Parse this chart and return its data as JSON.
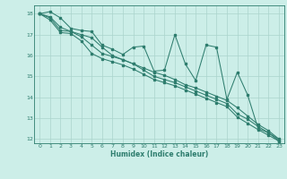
{
  "title": "",
  "xlabel": "Humidex (Indice chaleur)",
  "bg_color": "#cceee8",
  "line_color": "#2e7d6e",
  "grid_color": "#aad4cc",
  "xmin": -0.5,
  "xmax": 23.5,
  "ymin": 11.8,
  "ymax": 18.4,
  "yticks": [
    12,
    13,
    14,
    15,
    16,
    17,
    18
  ],
  "xticks": [
    0,
    1,
    2,
    3,
    4,
    5,
    6,
    7,
    8,
    9,
    10,
    11,
    12,
    13,
    14,
    15,
    16,
    17,
    18,
    19,
    20,
    21,
    22,
    23
  ],
  "series": [
    [
      18.0,
      18.1,
      17.8,
      17.3,
      17.2,
      17.15,
      16.5,
      16.3,
      16.05,
      16.4,
      16.45,
      15.25,
      15.3,
      17.0,
      15.6,
      14.8,
      16.5,
      16.4,
      13.9,
      15.2,
      14.1,
      12.5,
      12.3,
      11.9
    ],
    [
      18.0,
      17.85,
      17.35,
      17.15,
      17.0,
      16.85,
      16.4,
      16.0,
      15.8,
      15.6,
      15.4,
      15.2,
      15.05,
      14.85,
      14.6,
      14.45,
      14.25,
      14.05,
      13.85,
      13.5,
      13.1,
      12.7,
      12.4,
      12.0
    ],
    [
      18.0,
      17.8,
      17.2,
      17.15,
      16.9,
      16.5,
      16.1,
      15.95,
      15.8,
      15.6,
      15.3,
      15.0,
      14.85,
      14.7,
      14.5,
      14.3,
      14.1,
      13.9,
      13.7,
      13.2,
      12.95,
      12.6,
      12.3,
      11.98
    ],
    [
      18.0,
      17.7,
      17.1,
      17.05,
      16.7,
      16.1,
      15.85,
      15.7,
      15.55,
      15.35,
      15.1,
      14.85,
      14.7,
      14.55,
      14.35,
      14.15,
      13.95,
      13.75,
      13.55,
      13.05,
      12.75,
      12.45,
      12.18,
      11.9
    ]
  ]
}
